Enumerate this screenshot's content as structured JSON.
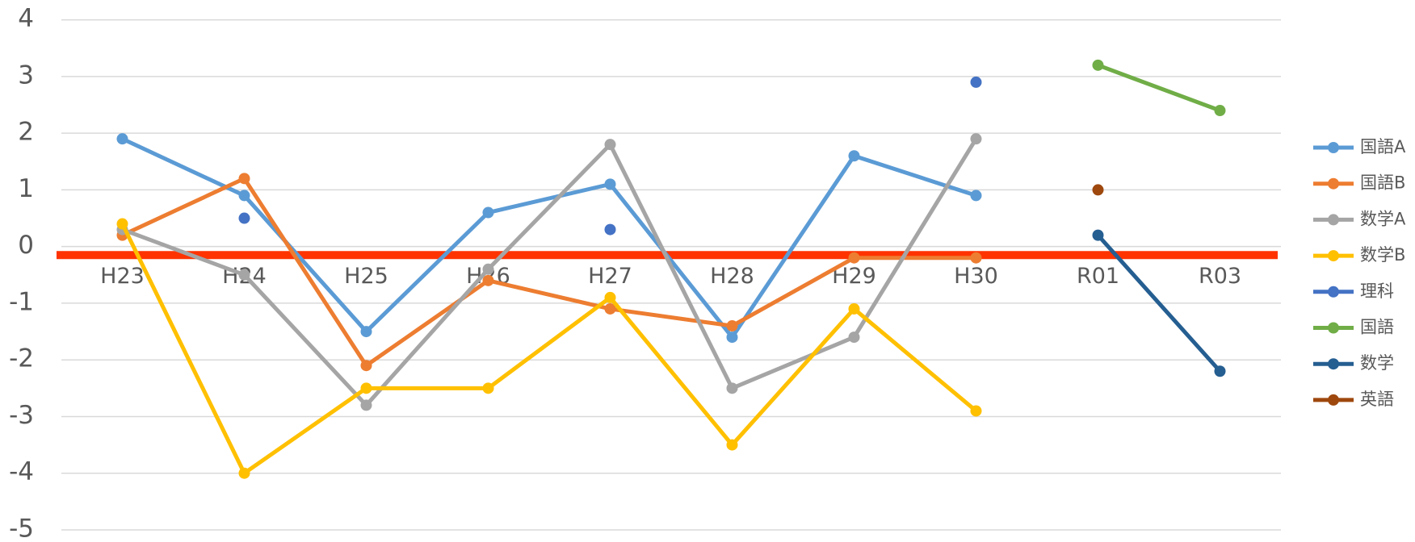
{
  "chart_data": {
    "type": "line",
    "categories": [
      "H23",
      "H24",
      "H25",
      "H26",
      "H27",
      "H28",
      "H29",
      "H30",
      "R01",
      "R03"
    ],
    "series": [
      {
        "name": "国語A",
        "color": "#5b9bd5",
        "values": [
          1.9,
          0.9,
          -1.5,
          0.6,
          1.1,
          -1.6,
          1.6,
          0.9,
          null,
          null
        ]
      },
      {
        "name": "国語B",
        "color": "#ed7d31",
        "values": [
          0.2,
          1.2,
          -2.1,
          -0.6,
          -1.1,
          -1.4,
          -0.2,
          -0.2,
          null,
          null
        ]
      },
      {
        "name": "数学A",
        "color": "#a5a5a5",
        "values": [
          0.3,
          -0.5,
          -2.8,
          -0.4,
          1.8,
          -2.5,
          -1.6,
          1.9,
          null,
          null
        ]
      },
      {
        "name": "数学B",
        "color": "#ffc000",
        "values": [
          0.4,
          -4,
          -2.5,
          -2.5,
          -0.9,
          -3.5,
          -1.1,
          -2.9,
          null,
          null
        ]
      },
      {
        "name": "理科",
        "color": "#4472c4",
        "values": [
          null,
          0.5,
          null,
          null,
          0.3,
          null,
          null,
          2.9,
          null,
          null
        ]
      },
      {
        "name": "国語",
        "color": "#70ad47",
        "values": [
          null,
          null,
          null,
          null,
          null,
          null,
          null,
          null,
          3.2,
          2.4
        ]
      },
      {
        "name": "数学",
        "color": "#255e91",
        "values": [
          null,
          null,
          null,
          null,
          null,
          null,
          null,
          null,
          0.2,
          -2.2
        ]
      },
      {
        "name": "英語",
        "color": "#9e480e",
        "values": [
          null,
          null,
          null,
          null,
          null,
          null,
          null,
          null,
          1.0,
          null
        ]
      }
    ],
    "ylim": [
      -5,
      4
    ],
    "yticks": [
      -5,
      -4,
      -3,
      -2,
      -1,
      0,
      1,
      2,
      3,
      4
    ],
    "grid": true,
    "reference_line": {
      "value": -0.15,
      "color": "#ff3300"
    },
    "legend": "right"
  }
}
